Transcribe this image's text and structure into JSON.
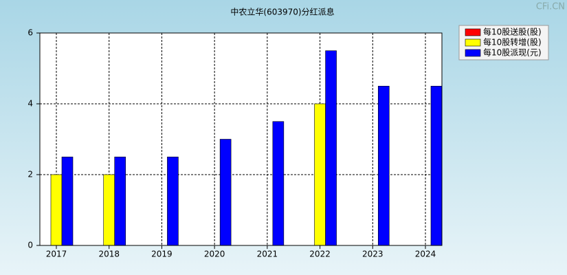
{
  "chart_data": {
    "type": "bar",
    "title": "中农立华(603970)分红派息",
    "watermark": "CFi.CN",
    "categories": [
      "2017",
      "2018",
      "2019",
      "2020",
      "2021",
      "2022",
      "2023",
      "2024"
    ],
    "series": [
      {
        "name": "每10股送股(股)",
        "color": "#ff0000",
        "values": [
          0,
          0,
          0,
          0,
          0,
          0,
          0,
          0
        ]
      },
      {
        "name": "每10股转增(股)",
        "color": "#ffff00",
        "values": [
          2,
          2,
          0,
          0,
          0,
          4,
          0,
          0
        ]
      },
      {
        "name": "每10股派现(元)",
        "color": "#0000ff",
        "values": [
          2.5,
          2.5,
          2.5,
          3,
          3.5,
          5.5,
          4.5,
          4.5
        ]
      }
    ],
    "ylim": [
      0,
      6
    ],
    "yticks": [
      0,
      2,
      4,
      6
    ],
    "grid": true,
    "legend": "top-right"
  }
}
